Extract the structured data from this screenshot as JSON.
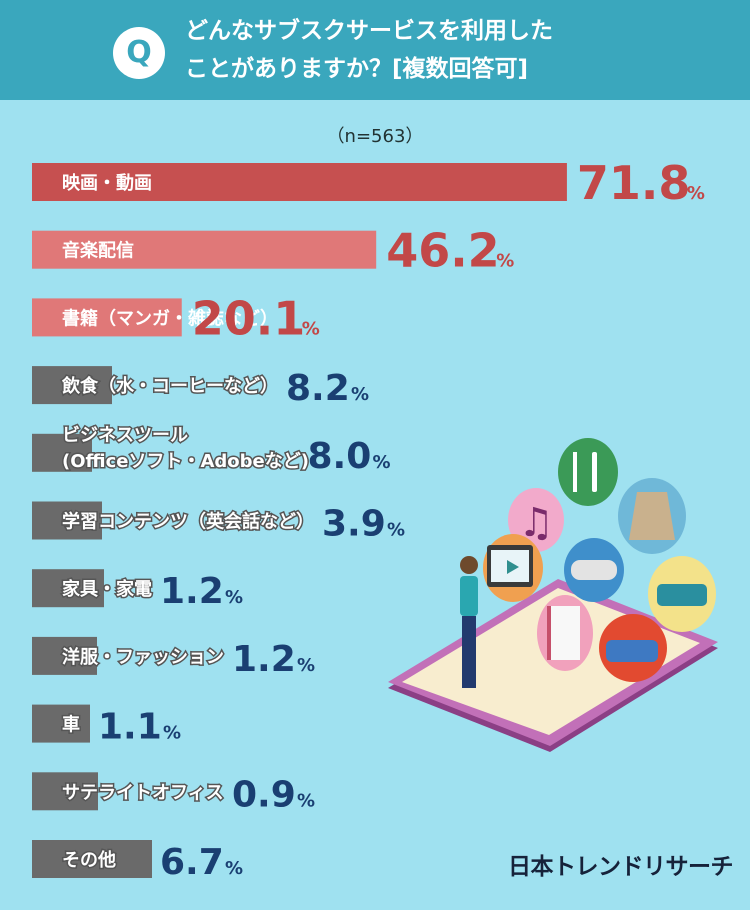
{
  "header": {
    "q_mark": "Q",
    "question_line1": "どんなサブスクサービスを利用した",
    "question_line2": "ことがありますか？[複数回答可]"
  },
  "sample_size": "（n=563）",
  "brand": "日本トレンドリサーチ",
  "colors": {
    "background": "#9fe1f0",
    "header": "#3aa7bd",
    "top1": "#c65050",
    "top2_3": "#e07878",
    "other_bar": "#6a6a6a",
    "top_value": "#c24848",
    "other_value": "#1a3f72"
  },
  "chart_data": {
    "type": "bar",
    "orientation": "horizontal",
    "unit": "%",
    "categories": [
      "映画・動画",
      "音楽配信",
      "書籍（マンガ・雑誌など）",
      "飲食（水・コーヒーなど）",
      "ビジネスツール\n(Officeソフト・Adobeなど)",
      "学習コンテンツ（英会話など）",
      "家具・家電",
      "洋服・ファッション",
      "車",
      "サテライトオフィス",
      "その他"
    ],
    "value_labels": [
      "71.8",
      "46.2",
      "20.1",
      "8.2",
      "8.0",
      "3.9",
      "1.2",
      "1.2",
      "1.1",
      "0.9",
      "6.7"
    ],
    "values": [
      71.8,
      46.2,
      20.1,
      8.2,
      8.0,
      3.9,
      1.2,
      1.2,
      1.1,
      0.9,
      6.7
    ],
    "xlim": [
      0,
      100
    ]
  }
}
